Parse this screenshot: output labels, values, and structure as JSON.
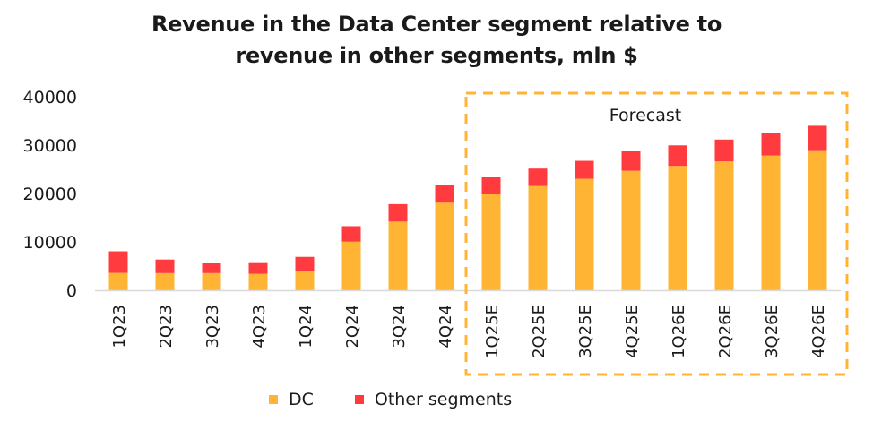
{
  "chart_data": {
    "type": "bar",
    "stacked": true,
    "title": [
      "Revenue in the Data Center segment relative to",
      "revenue in other segments, mln $"
    ],
    "xlabel": "",
    "ylabel": "",
    "ylim": [
      0,
      40000
    ],
    "yticks": [
      0,
      10000,
      20000,
      30000,
      40000
    ],
    "ytick_labels": [
      "0",
      "10000",
      "20000",
      "30000",
      "40000"
    ],
    "grid": false,
    "categories": [
      "1Q23",
      "2Q23",
      "3Q23",
      "4Q23",
      "1Q24",
      "2Q24",
      "3Q24",
      "4Q24",
      "1Q25E",
      "2Q25E",
      "3Q25E",
      "4Q25E",
      "1Q26E",
      "2Q26E",
      "3Q26E",
      "4Q26E"
    ],
    "series": [
      {
        "name": "DC",
        "color": "#FFB533",
        "values": [
          3600,
          3550,
          3550,
          3400,
          4050,
          10050,
          14200,
          18100,
          19900,
          21550,
          23050,
          24700,
          25700,
          26650,
          27850,
          28950
        ]
      },
      {
        "name": "Other segments",
        "color": "#FF3B3F",
        "values": [
          4450,
          2800,
          2050,
          2400,
          2850,
          3200,
          3600,
          3650,
          3450,
          3600,
          3700,
          4050,
          4250,
          4500,
          4650,
          5050
        ]
      }
    ],
    "annotations": [
      {
        "text": "Forecast",
        "type": "dashed-box",
        "color": "#FFB533",
        "covers_categories": [
          "1Q25E",
          "2Q25E",
          "3Q25E",
          "4Q25E",
          "1Q26E",
          "2Q26E",
          "3Q26E",
          "4Q26E"
        ]
      }
    ],
    "legend": {
      "placement": "bottom-center",
      "entries": [
        "DC",
        "Other segments"
      ]
    },
    "label_rotation": -90
  }
}
